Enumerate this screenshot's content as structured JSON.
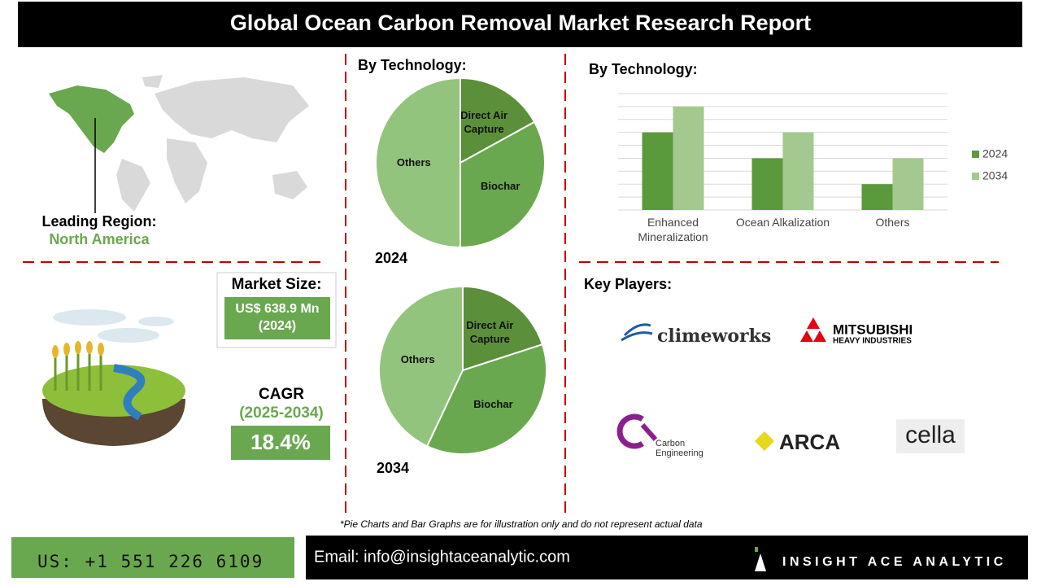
{
  "header": {
    "title": "Global Ocean Carbon Removal Market Research Report"
  },
  "region": {
    "label": "Leading Region:",
    "value": "North America"
  },
  "market": {
    "label": "Market Size:",
    "value": "US$ 638.9 Mn (2024)"
  },
  "cagr": {
    "label": "CAGR",
    "period": "(2025-2034)",
    "value": "18.4%"
  },
  "chart_data": [
    {
      "type": "pie",
      "title": "By Technology:",
      "subtitle": "2024",
      "categories": [
        "Direct Air Capture",
        "Biochar",
        "Others"
      ],
      "values": [
        17,
        33,
        50
      ],
      "colors": [
        "#5b8f3a",
        "#6aa84f",
        "#93c47d"
      ]
    },
    {
      "type": "pie",
      "subtitle": "2034",
      "categories": [
        "Direct Air Capture",
        "Biochar",
        "Others"
      ],
      "values": [
        20,
        37,
        43
      ],
      "colors": [
        "#5b8f3a",
        "#6aa84f",
        "#93c47d"
      ]
    },
    {
      "type": "bar",
      "title": "By Technology:",
      "categories": [
        "Enhanced Mineralization",
        "Ocean Alkalization",
        "Others"
      ],
      "series": [
        {
          "name": "2024",
          "color": "#5b9a3c",
          "values": [
            6,
            4,
            2
          ]
        },
        {
          "name": "2034",
          "color": "#a4c98f",
          "values": [
            8,
            6,
            4
          ]
        }
      ],
      "ylim": [
        0,
        9
      ],
      "yticks": [
        0,
        1,
        2,
        3,
        4,
        5,
        6,
        7,
        8,
        9
      ],
      "grid": true,
      "legend": "right"
    }
  ],
  "players": {
    "title": "Key Players:",
    "logos": [
      "climeworks",
      "MITSUBISHI",
      "HEAVY INDUSTRIES",
      "Carbon Engineering",
      "ARCA",
      "cella"
    ]
  },
  "note": "*Pie Charts and Bar Graphs are for illustration only and do not represent actual data",
  "footer": {
    "phone": "US: +1 551 226 6109",
    "email": "Email: info@insightaceanalytic.com",
    "brand": "INSIGHT ACE ANALYTIC"
  }
}
